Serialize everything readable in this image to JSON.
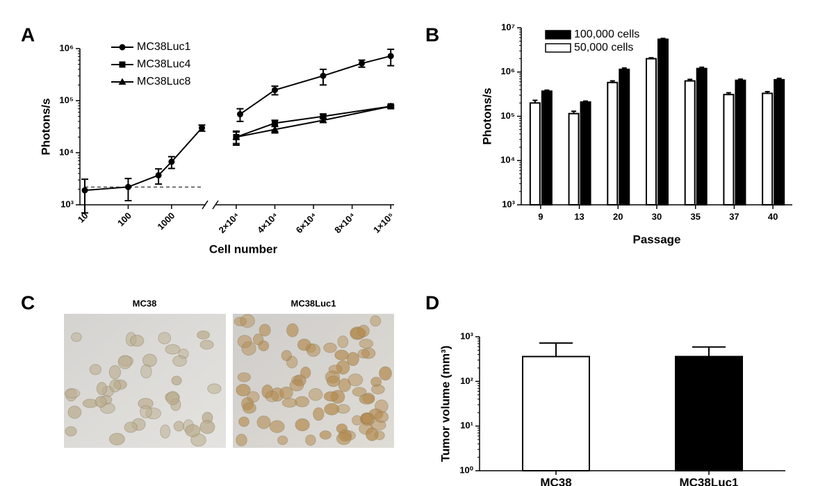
{
  "chart_data": [
    {
      "panel": "A",
      "type": "line",
      "xlabel": "Cell number",
      "ylabel": "Photons/s",
      "xlim": [
        10,
        101000
      ],
      "xbreak": [
        5900,
        15000
      ],
      "ylim": [
        1000,
        1000000
      ],
      "ylog": true,
      "xticks": [
        10,
        100,
        1000,
        {
          "value": 20000,
          "label": "2×10⁴"
        },
        {
          "value": 40000,
          "label": "4×10⁴"
        },
        {
          "value": 60000,
          "label": "6×10⁴"
        },
        {
          "value": 80000,
          "label": "8×10⁴"
        },
        {
          "value": 100000,
          "label": "1×10⁵"
        }
      ],
      "yticks": [
        {
          "value": 1000,
          "label": "10³"
        },
        {
          "value": 10000,
          "label": "10⁴"
        },
        {
          "value": 100000,
          "label": "10⁵"
        },
        {
          "value": 1000000,
          "label": "10⁶"
        }
      ],
      "threshold": 2200,
      "series": [
        {
          "name": "MC38Luc1",
          "color": "#000000",
          "marker": "circle",
          "x": [
            10,
            100,
            500,
            1000,
            5000,
            22000,
            40000,
            65000,
            85000,
            100000
          ],
          "values": [
            1900,
            2200,
            3700,
            6700,
            30000,
            55000,
            160000,
            300000,
            520000,
            720000
          ],
          "errors": [
            1200,
            1000,
            1200,
            1700,
            4000,
            15000,
            30000,
            100000,
            80000,
            250000
          ]
        },
        {
          "name": "MC38Luc4",
          "color": "#000000",
          "marker": "square",
          "x": [
            20000,
            40000,
            65000,
            100000
          ],
          "values": [
            20000,
            37000,
            50000,
            78000
          ],
          "errors": [
            6000,
            5000,
            5000,
            4000
          ]
        },
        {
          "name": "MC38Luc8",
          "color": "#000000",
          "marker": "triangle",
          "x": [
            20000,
            40000,
            65000,
            100000
          ],
          "values": [
            20000,
            28000,
            42000,
            78000
          ],
          "errors": [
            5000,
            4000,
            4000,
            3000
          ]
        }
      ]
    },
    {
      "panel": "B",
      "type": "bar",
      "xlabel": "Passage",
      "ylabel": "Photons/s",
      "ylim": [
        1000,
        10000000
      ],
      "ylog": true,
      "yticks": [
        {
          "value": 1000,
          "label": "10³"
        },
        {
          "value": 10000,
          "label": "10⁴"
        },
        {
          "value": 100000,
          "label": "10⁵"
        },
        {
          "value": 1000000,
          "label": "10⁶"
        },
        {
          "value": 10000000,
          "label": "10⁷"
        }
      ],
      "categories": [
        "9",
        "13",
        "20",
        "30",
        "35",
        "37",
        "40"
      ],
      "series": [
        {
          "name": "100,000 cells",
          "color": "#000000",
          "values": [
            370000,
            210000,
            1150000,
            5500000,
            1200000,
            650000,
            670000
          ],
          "errors": [
            20000,
            10000,
            80000,
            250000,
            80000,
            40000,
            50000
          ]
        },
        {
          "name": "50,000 cells",
          "color": "#ffffff",
          "values": [
            200000,
            115000,
            580000,
            2000000,
            630000,
            310000,
            330000
          ],
          "errors": [
            30000,
            15000,
            50000,
            100000,
            50000,
            30000,
            30000
          ]
        }
      ]
    },
    {
      "panel": "D",
      "type": "bar",
      "ylabel": "Tumor volume (mm³)",
      "ylim": [
        1,
        1000
      ],
      "ylog": true,
      "yticks": [
        {
          "value": 1,
          "label": "10⁰"
        },
        {
          "value": 10,
          "label": "10¹"
        },
        {
          "value": 100,
          "label": "10²"
        },
        {
          "value": 1000,
          "label": "10³"
        }
      ],
      "categories": [
        "MC38",
        "MC38Luc1"
      ],
      "colors": [
        "#ffffff",
        "#000000"
      ],
      "values": [
        360,
        360
      ],
      "errors": [
        360,
        230
      ]
    }
  ],
  "images": {
    "panel": "C",
    "titles": [
      "MC38",
      "MC38Luc1"
    ]
  }
}
